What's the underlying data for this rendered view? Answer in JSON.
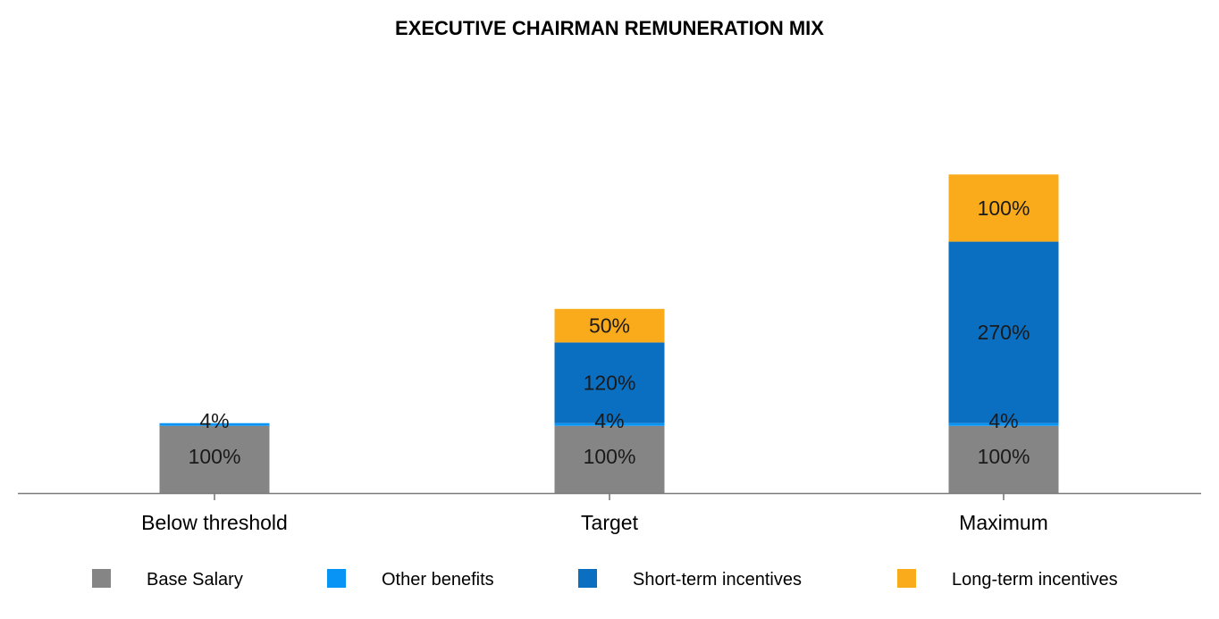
{
  "chart_data": {
    "type": "bar",
    "stacked": true,
    "title": "EXECUTIVE CHAIRMAN REMUNERATION MIX",
    "categories": [
      "Below threshold",
      "Target",
      "Maximum"
    ],
    "series": [
      {
        "name": "Base Salary",
        "color": "#858585",
        "values": [
          100,
          100,
          100
        ],
        "labels": [
          "100%",
          "100%",
          "100%"
        ]
      },
      {
        "name": "Other benefits",
        "color": "#0894f5",
        "values": [
          4,
          4,
          4
        ],
        "labels": [
          "4%",
          "4%",
          "4%"
        ]
      },
      {
        "name": "Short-term incentives",
        "color": "#0a6ec1",
        "values": [
          0,
          120,
          270
        ],
        "labels": [
          "",
          "120%",
          "270%"
        ]
      },
      {
        "name": "Long-term incentives",
        "color": "#f9ab1c",
        "values": [
          0,
          50,
          100
        ],
        "labels": [
          "",
          "50%",
          "100%"
        ]
      }
    ],
    "xlabel": "",
    "ylabel": "",
    "ylim": [
      0,
      520
    ],
    "grid": false,
    "legend_position": "bottom"
  }
}
